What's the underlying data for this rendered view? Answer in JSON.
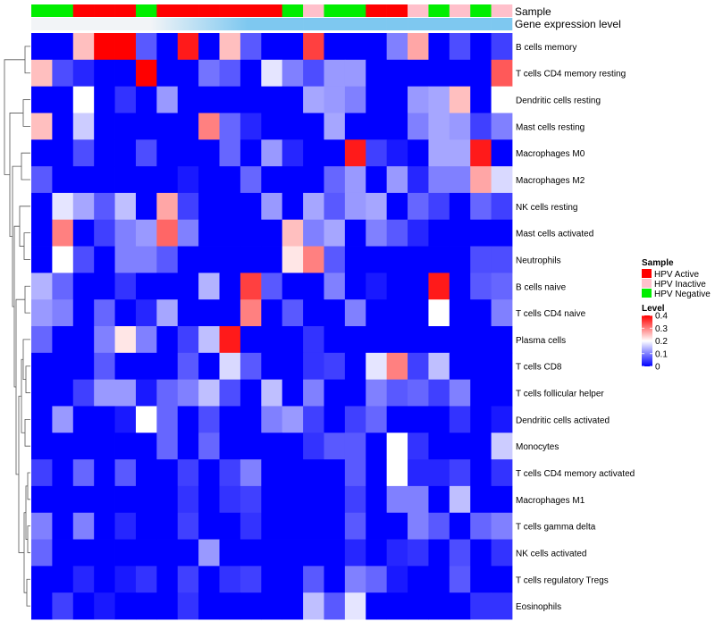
{
  "chart_data": {
    "type": "heatmap",
    "title": "",
    "annotation_labels": {
      "sample": "Sample",
      "gene_expression": "Gene expression level"
    },
    "sample_groups": [
      "Negative",
      "Negative",
      "Active",
      "Active",
      "Active",
      "Negative",
      "Active",
      "Active",
      "Active",
      "Active",
      "Active",
      "Active",
      "Negative",
      "Inactive",
      "Negative",
      "Negative",
      "Active",
      "Active",
      "Inactive",
      "Negative",
      "Inactive",
      "Negative",
      "Inactive"
    ],
    "rows": [
      "B cells memory",
      "T cells CD4 memory resting",
      "Dendritic cells resting",
      "Mast cells resting",
      "Macrophages M0",
      "Macrophages M2",
      "NK cells resting",
      "Mast cells activated",
      "Neutrophils",
      "B cells naive",
      "T cells CD4 naive",
      "Plasma cells",
      "T cells CD8",
      "T cells follicular helper",
      "Dendritic cells activated",
      "Monocytes",
      "T cells CD4 memory activated",
      "Macrophages M1",
      "T cells gamma delta",
      "NK cells activated",
      "T cells regulatory  Tregs",
      "Eosinophils"
    ],
    "values": [
      [
        0,
        0,
        0.25,
        0.4,
        0.4,
        0.07,
        0,
        0.38,
        0,
        0.25,
        0.07,
        0,
        0,
        0.35,
        0,
        0,
        0,
        0.1,
        0.27,
        0,
        0.06,
        0,
        0.05
      ],
      [
        0.25,
        0.06,
        0.03,
        0,
        0,
        0.4,
        0,
        0,
        0.09,
        0.07,
        0,
        0.18,
        0.1,
        0.06,
        0.12,
        0.12,
        0,
        0,
        0,
        0,
        0,
        0,
        0.33
      ],
      [
        0,
        0,
        0.2,
        0,
        0.04,
        0,
        0.12,
        0,
        0,
        0,
        0,
        0,
        0,
        0.13,
        0.12,
        0.1,
        0,
        0,
        0.12,
        0.13,
        0.25,
        0,
        0.2
      ],
      [
        0.25,
        0,
        0.16,
        0,
        0,
        0,
        0,
        0,
        0.3,
        0.08,
        0.03,
        0,
        0,
        0,
        0.13,
        0,
        0,
        0,
        0.1,
        0.13,
        0.12,
        0.05,
        0.1
      ],
      [
        0,
        0,
        0.06,
        0,
        0,
        0.06,
        0,
        0,
        0,
        0.08,
        0,
        0.12,
        0.03,
        0,
        0,
        0.38,
        0.05,
        0.02,
        0,
        0.13,
        0.13,
        0.38,
        0
      ],
      [
        0.07,
        0,
        0,
        0,
        0,
        0,
        0,
        0.02,
        0,
        0,
        0.08,
        0,
        0,
        0,
        0.08,
        0.12,
        0,
        0.12,
        0.03,
        0.1,
        0.1,
        0.27,
        0.17
      ],
      [
        0,
        0.18,
        0.13,
        0.07,
        0.15,
        0,
        0.27,
        0.05,
        0,
        0,
        0,
        0.12,
        0,
        0.13,
        0.07,
        0.12,
        0.13,
        0,
        0.08,
        0.05,
        0,
        0.08,
        0.05
      ],
      [
        0,
        0.3,
        0,
        0.05,
        0.1,
        0.12,
        0.32,
        0.1,
        0,
        0,
        0,
        0,
        0.25,
        0.1,
        0.13,
        0,
        0.1,
        0.07,
        0.03,
        0,
        0,
        0,
        0
      ],
      [
        0,
        0.2,
        0.06,
        0,
        0.1,
        0.1,
        0.07,
        0,
        0,
        0,
        0,
        0,
        0.22,
        0.3,
        0.07,
        0,
        0,
        0,
        0,
        0,
        0,
        0.06,
        0.06
      ],
      [
        0.14,
        0.08,
        0,
        0,
        0.04,
        0,
        0,
        0,
        0.14,
        0,
        0.35,
        0.07,
        0,
        0,
        0.1,
        0,
        0.02,
        0,
        0,
        0.38,
        0,
        0.07,
        0.08
      ],
      [
        0.12,
        0.1,
        0,
        0.08,
        0,
        0.03,
        0.13,
        0,
        0,
        0,
        0.3,
        0,
        0.07,
        0,
        0,
        0.1,
        0,
        0,
        0,
        0.2,
        0,
        0,
        0.1
      ],
      [
        0.08,
        0,
        0,
        0.1,
        0.22,
        0.1,
        0,
        0.05,
        0.15,
        0.38,
        0,
        0,
        0,
        0.04,
        0,
        0,
        0,
        0,
        0,
        0,
        0,
        0,
        0
      ],
      [
        0,
        0,
        0,
        0.07,
        0,
        0,
        0,
        0.07,
        0,
        0.17,
        0.07,
        0,
        0,
        0.04,
        0.05,
        0,
        0.18,
        0.3,
        0.05,
        0.15,
        0,
        0,
        0
      ],
      [
        0,
        0,
        0.05,
        0.12,
        0.12,
        0.02,
        0.08,
        0.1,
        0.15,
        0.06,
        0,
        0.15,
        0,
        0.1,
        0,
        0,
        0.1,
        0.07,
        0.08,
        0.05,
        0.1,
        0,
        0
      ],
      [
        0,
        0.12,
        0,
        0,
        0.02,
        0.2,
        0.08,
        0,
        0.06,
        0,
        0,
        0.1,
        0.12,
        0.05,
        0,
        0.05,
        0.08,
        0,
        0,
        0,
        0.04,
        0,
        0.02
      ],
      [
        0,
        0,
        0,
        0,
        0,
        0,
        0.08,
        0,
        0.08,
        0,
        0,
        0,
        0,
        0.04,
        0.07,
        0.07,
        0,
        0.2,
        0.04,
        0,
        0,
        0,
        0.16
      ],
      [
        0.05,
        0,
        0.08,
        0,
        0.07,
        0,
        0,
        0.05,
        0,
        0.05,
        0.1,
        0,
        0,
        0,
        0,
        0.07,
        0,
        0.2,
        0.03,
        0.03,
        0.05,
        0,
        0.04
      ],
      [
        0,
        0,
        0,
        0,
        0,
        0,
        0,
        0.04,
        0,
        0.04,
        0.05,
        0,
        0,
        0,
        0,
        0.05,
        0,
        0.1,
        0.1,
        0,
        0.15,
        0,
        0
      ],
      [
        0.1,
        0,
        0.1,
        0,
        0.03,
        0,
        0,
        0.05,
        0,
        0,
        0.04,
        0,
        0,
        0,
        0,
        0.07,
        0,
        0,
        0.1,
        0.07,
        0,
        0.08,
        0.1
      ],
      [
        0.08,
        0,
        0,
        0,
        0,
        0,
        0,
        0,
        0.12,
        0,
        0,
        0,
        0,
        0,
        0,
        0.03,
        0,
        0.03,
        0.04,
        0,
        0.06,
        0,
        0.04
      ],
      [
        0,
        0,
        0.03,
        0,
        0.02,
        0.04,
        0,
        0.05,
        0,
        0.04,
        0.05,
        0,
        0,
        0.07,
        0,
        0.1,
        0.08,
        0.02,
        0,
        0,
        0.07,
        0,
        0
      ],
      [
        0,
        0.05,
        0,
        0.02,
        0,
        0,
        0,
        0.04,
        0,
        0,
        0,
        0,
        0,
        0.15,
        0.07,
        0.18,
        0,
        0,
        0,
        0,
        0,
        0.04,
        0.04
      ]
    ],
    "gene_expression_color": "#7ec8f0",
    "gene_expression_light": "#f2f4f7",
    "legend": {
      "sample_title": "Sample",
      "sample_items": [
        {
          "key": "Active",
          "label": "HPV Active",
          "color": "#ff0000"
        },
        {
          "key": "Inactive",
          "label": "HPV Inactive",
          "color": "#ffc0cb"
        },
        {
          "key": "Negative",
          "label": "HPV Negative",
          "color": "#00ee00"
        }
      ],
      "level_title": "Level",
      "level_ticks": [
        "0.4",
        "0.3",
        "0.2",
        "0.1",
        "0"
      ],
      "level_range": [
        0,
        0.4
      ]
    },
    "colors": {
      "low": "#0000ff",
      "mid": "#ffffff",
      "high": "#ff0000"
    }
  }
}
